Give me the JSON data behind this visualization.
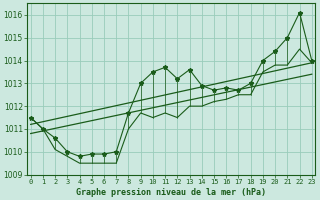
{
  "title": "Graphe pression niveau de la mer (hPa)",
  "x_labels": [
    "0",
    "1",
    "2",
    "3",
    "4",
    "5",
    "6",
    "7",
    "8",
    "9",
    "10",
    "11",
    "12",
    "13",
    "14",
    "15",
    "16",
    "17",
    "18",
    "19",
    "20",
    "21",
    "22",
    "23"
  ],
  "ylim": [
    1009.0,
    1016.5
  ],
  "yticks": [
    1009,
    1010,
    1011,
    1012,
    1013,
    1014,
    1015,
    1016
  ],
  "xlim": [
    -0.3,
    23.3
  ],
  "bg_color": "#cce8df",
  "grid_color": "#99ccbb",
  "line_color": "#1a5c1a",
  "data_main": [
    1011.5,
    1011.0,
    1010.6,
    1010.0,
    1009.8,
    1009.9,
    1009.9,
    1010.0,
    1011.7,
    1013.0,
    1013.5,
    1013.7,
    1013.2,
    1013.6,
    1012.9,
    1012.7,
    1012.8,
    1012.7,
    1013.0,
    1014.0,
    1014.4,
    1015.0,
    1016.1,
    1014.0
  ],
  "data_min": [
    1011.5,
    1011.0,
    1010.1,
    1009.8,
    1009.5,
    1009.5,
    1009.5,
    1009.5,
    1011.0,
    1011.7,
    1011.5,
    1011.7,
    1011.5,
    1012.0,
    1012.0,
    1012.2,
    1012.3,
    1012.5,
    1012.5,
    1013.5,
    1013.8,
    1013.8,
    1014.5,
    1013.9
  ],
  "trend1_x": [
    0,
    23
  ],
  "trend1_y": [
    1011.2,
    1013.9
  ],
  "trend2_x": [
    0,
    23
  ],
  "trend2_y": [
    1010.8,
    1013.4
  ],
  "figsize": [
    3.2,
    2.0
  ],
  "dpi": 100
}
